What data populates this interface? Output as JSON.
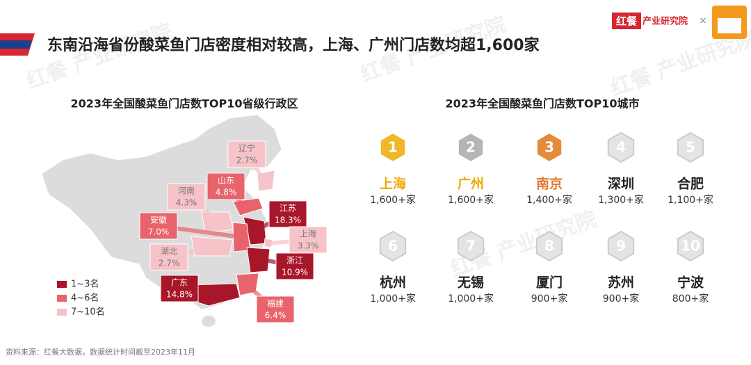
{
  "header": {
    "title": "东南沿海省份酸菜鱼门店密度相对较高，上海、广州门店数均超1,600家",
    "logo": "红餐",
    "logo_sub": "产业研究院",
    "watermark": "红餐 产业研究院"
  },
  "provinces": {
    "title": "2023年全国酸菜鱼门店数TOP10省级行政区",
    "items": [
      {
        "name": "辽宁",
        "share": "2.7%"
      },
      {
        "name": "山东",
        "share": "4.8%"
      },
      {
        "name": "河南",
        "share": "4.3%"
      },
      {
        "name": "江苏",
        "share": "18.3%"
      },
      {
        "name": "安徽",
        "share": "7.0%"
      },
      {
        "name": "上海",
        "share": "3.3%"
      },
      {
        "name": "湖北",
        "share": "2.7%"
      },
      {
        "name": "浙江",
        "share": "10.9%"
      },
      {
        "name": "广东",
        "share": "14.8%"
      },
      {
        "name": "福建",
        "share": "6.4%"
      }
    ],
    "legend": [
      "1~3名",
      "4~6名",
      "7~10名"
    ]
  },
  "cities": {
    "title": "2023年全国酸菜鱼门店数TOP10城市",
    "items": [
      {
        "rank": "1",
        "name": "上海",
        "count": "1,600+家"
      },
      {
        "rank": "2",
        "name": "广州",
        "count": "1,600+家"
      },
      {
        "rank": "3",
        "name": "南京",
        "count": "1,400+家"
      },
      {
        "rank": "4",
        "name": "深圳",
        "count": "1,300+家"
      },
      {
        "rank": "5",
        "name": "合肥",
        "count": "1,100+家"
      },
      {
        "rank": "6",
        "name": "杭州",
        "count": "1,000+家"
      },
      {
        "rank": "7",
        "name": "无锡",
        "count": "1,000+家"
      },
      {
        "rank": "8",
        "name": "厦门",
        "count": "900+家"
      },
      {
        "rank": "9",
        "name": "苏州",
        "count": "900+家"
      },
      {
        "rank": "10",
        "name": "宁波",
        "count": "800+家"
      }
    ]
  },
  "source": "资料来源：红餐大数据，数据统计时间截至2023年11月"
}
